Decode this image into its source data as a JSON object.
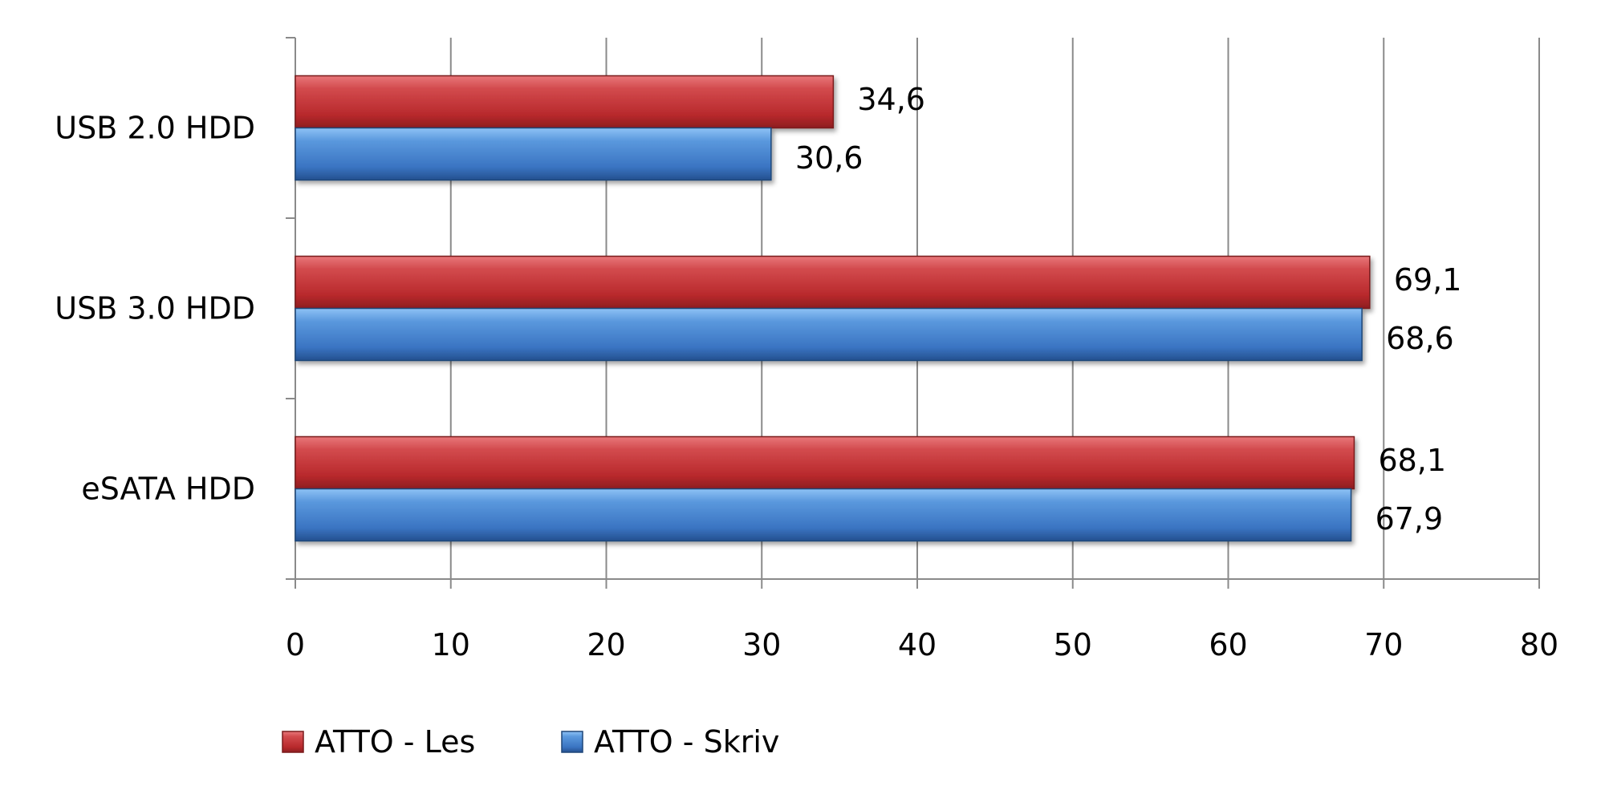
{
  "chart_data": {
    "type": "bar",
    "orientation": "horizontal",
    "categories": [
      "USB 2.0 HDD",
      "USB 3.0 HDD",
      "eSATA HDD"
    ],
    "series": [
      {
        "name": "ATTO - Les",
        "values": [
          34.6,
          69.1,
          68.1
        ],
        "value_labels": [
          "34,6",
          "69,1",
          "68,1"
        ],
        "color": "#c0393b"
      },
      {
        "name": "ATTO - Skriv",
        "values": [
          30.6,
          68.6,
          67.9
        ],
        "value_labels": [
          "30,6",
          "68,6",
          "67,9"
        ],
        "color": "#3a78c8"
      }
    ],
    "xlim": [
      0,
      80
    ],
    "x_ticks": [
      0,
      10,
      20,
      30,
      40,
      50,
      60,
      70,
      80
    ],
    "grid": true,
    "legend_position": "bottom-left",
    "title": "",
    "xlabel": "",
    "ylabel": ""
  }
}
